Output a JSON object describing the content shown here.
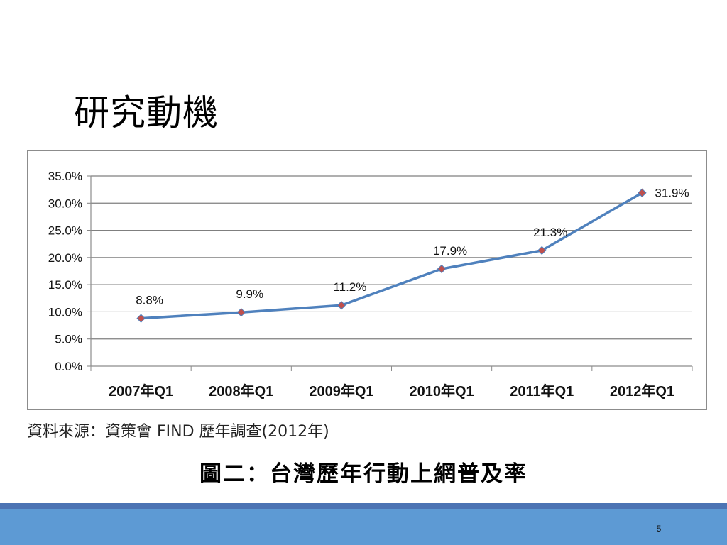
{
  "slide": {
    "title": "研究動機",
    "source_note": "資料來源：資策會 FIND 歷年調查(2012年)",
    "caption": "圖二：台灣歷年行動上網普及率",
    "page_number": "5"
  },
  "colors": {
    "line": "#4f81bd",
    "marker": "#c0504d",
    "gridline": "#7f7f7f",
    "footer_band": "#5d9ad4",
    "footer_line": "#4c74b4"
  },
  "chart_data": {
    "type": "line",
    "title": "",
    "xlabel": "",
    "ylabel": "",
    "categories": [
      "2007年Q1",
      "2008年Q1",
      "2009年Q1",
      "2010年Q1",
      "2011年Q1",
      "2012年Q1"
    ],
    "values": [
      8.8,
      9.9,
      11.2,
      17.9,
      21.3,
      31.9
    ],
    "data_labels": [
      "8.8%",
      "9.9%",
      "11.2%",
      "17.9%",
      "21.3%",
      "31.9%"
    ],
    "ylim": [
      0,
      35
    ],
    "y_ticks": [
      0,
      5,
      10,
      15,
      20,
      25,
      30,
      35
    ],
    "y_tick_labels": [
      "0.0%",
      "5.0%",
      "10.0%",
      "15.0%",
      "20.0%",
      "25.0%",
      "30.0%",
      "35.0%"
    ],
    "grid": true,
    "legend": "none",
    "marker": "diamond"
  }
}
